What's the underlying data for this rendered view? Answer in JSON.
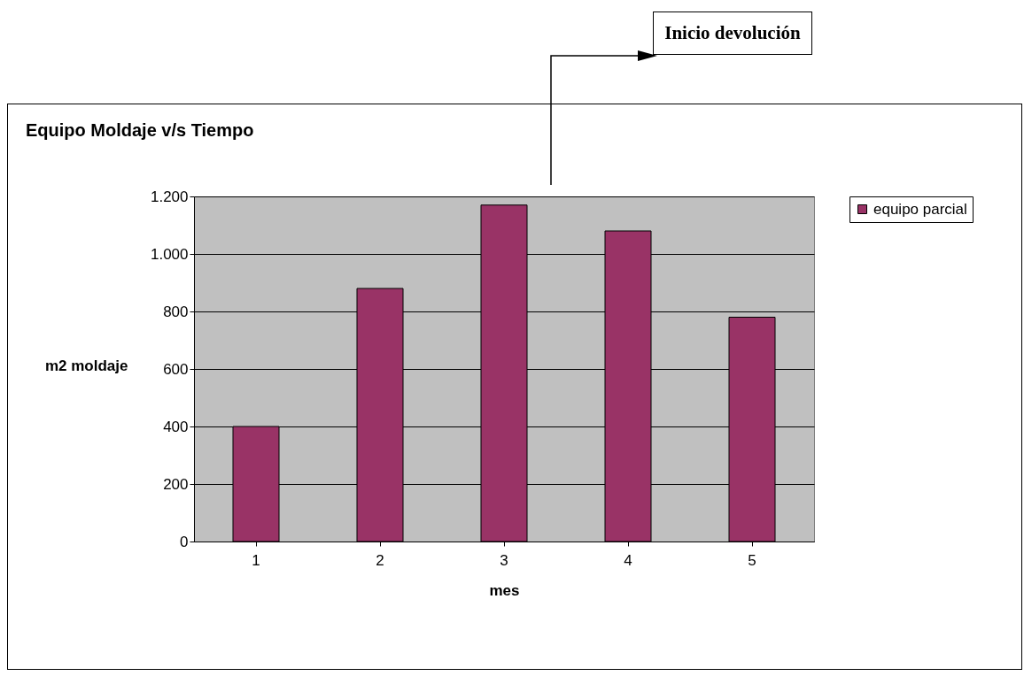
{
  "chart_data": {
    "type": "bar",
    "title": "Equipo Moldaje v/s  Tiempo",
    "xlabel": "mes",
    "ylabel": "m2 moldaje",
    "categories": [
      "1",
      "2",
      "3",
      "4",
      "5"
    ],
    "series": [
      {
        "name": "equipo parcial",
        "color": "#993366",
        "values": [
          400,
          880,
          1170,
          1080,
          780
        ]
      }
    ],
    "ylim": [
      0,
      1200
    ],
    "yticks": [
      0,
      200,
      400,
      600,
      800,
      {
        "value": 1000,
        "label": "1.000"
      },
      {
        "value": 1200,
        "label": "1.200"
      }
    ],
    "grid": "y",
    "legend": "right",
    "annotations": [
      "Inicio devolución"
    ]
  }
}
